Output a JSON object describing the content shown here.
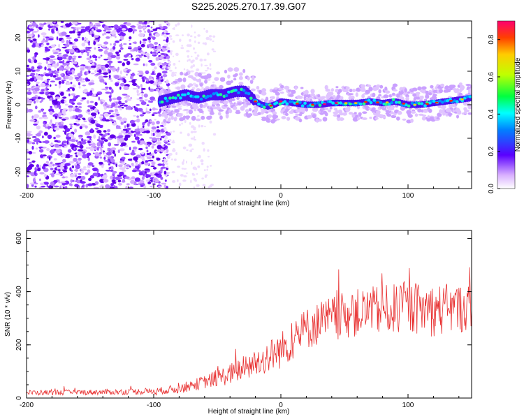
{
  "title": "S225.2025.270.17.39.G07",
  "chart_data": [
    {
      "type": "heatmap",
      "name": "spectrogram",
      "xlabel": "Height of straight line (km)",
      "ylabel": "Frequency (Hz)",
      "xlim": [
        -200,
        150
      ],
      "ylim": [
        -25,
        25
      ],
      "x_ticks": [
        "-200",
        "-100",
        "0",
        "100"
      ],
      "x_tick_values": [
        -200,
        -100,
        0,
        100
      ],
      "y_ticks": [
        "-20",
        "-10",
        "0",
        "10",
        "20"
      ],
      "y_tick_values": [
        -20,
        -10,
        0,
        10,
        20
      ],
      "colorbar": {
        "label": "Normalized spectral amplitude",
        "range": [
          0,
          0.9
        ],
        "ticks": [
          "0.0",
          "0.2",
          "0.4",
          "0.6",
          "0.8"
        ],
        "tick_values": [
          0,
          0.2,
          0.4,
          0.6,
          0.8
        ]
      },
      "ridge": {
        "x": [
          -95,
          -85,
          -75,
          -65,
          -55,
          -45,
          -35,
          -28,
          -20,
          -15,
          -10,
          -5,
          0,
          10,
          20,
          30,
          40,
          50,
          60,
          70,
          80,
          90,
          100,
          110,
          120,
          130,
          140,
          150
        ],
        "y": [
          1,
          2,
          3,
          2,
          3,
          3,
          4,
          4,
          1,
          0,
          -0.5,
          0,
          1,
          0.5,
          0,
          0,
          0.5,
          0.5,
          0.5,
          1,
          0.5,
          1,
          0,
          0,
          0.5,
          1,
          1.5,
          2
        ]
      }
    },
    {
      "type": "line",
      "name": "snr",
      "xlabel": "Height of straight line (km)",
      "ylabel": "SNR (10 * v/v)",
      "xlim": [
        -200,
        150
      ],
      "ylim": [
        0,
        630
      ],
      "x_ticks": [
        "-200",
        "-100",
        "0",
        "100"
      ],
      "x_tick_values": [
        -200,
        -100,
        0,
        100
      ],
      "y_ticks": [
        "0",
        "200",
        "400",
        "600"
      ],
      "y_tick_values": [
        0,
        200,
        400,
        600
      ],
      "color": "#e83030",
      "series": [
        {
          "trend_x": [
            -200,
            -150,
            -100,
            -80,
            -60,
            -40,
            -20,
            0,
            20,
            40,
            60,
            80,
            100,
            120,
            150
          ],
          "trend_y": [
            20,
            22,
            25,
            35,
            60,
            90,
            130,
            180,
            260,
            300,
            320,
            330,
            340,
            330,
            340
          ],
          "spread_y": [
            10,
            10,
            12,
            18,
            25,
            40,
            55,
            70,
            80,
            85,
            90,
            95,
            95,
            100,
            90
          ]
        }
      ]
    }
  ]
}
